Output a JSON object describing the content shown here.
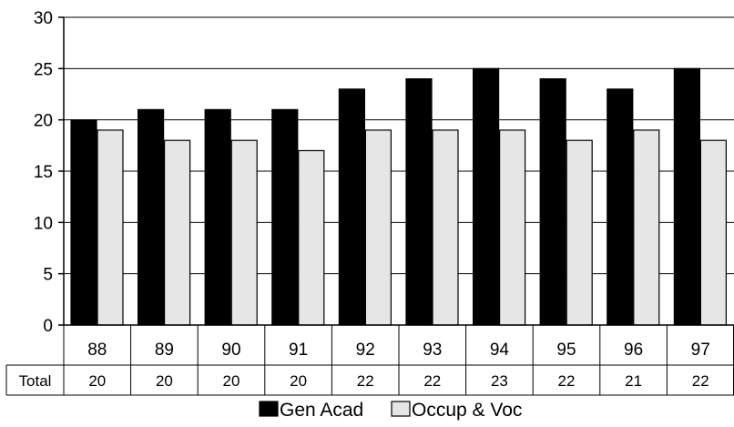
{
  "chart_data": {
    "type": "bar",
    "categories": [
      "88",
      "89",
      "90",
      "91",
      "92",
      "93",
      "94",
      "95",
      "96",
      "97"
    ],
    "series": [
      {
        "name": "Gen Acad",
        "values": [
          20,
          21,
          21,
          21,
          23,
          24,
          25,
          24,
          23,
          25
        ],
        "color": "#000000"
      },
      {
        "name": "Occup & Voc",
        "values": [
          19,
          18,
          18,
          17,
          19,
          19,
          19,
          18,
          19,
          18
        ],
        "color": "#e6e6e6"
      }
    ],
    "ylim": [
      0,
      30
    ],
    "yticks": [
      "0",
      "5",
      "10",
      "15",
      "20",
      "25",
      "30"
    ],
    "grid": true,
    "data_table": {
      "row_label": "Total",
      "values": [
        "20",
        "20",
        "20",
        "20",
        "22",
        "22",
        "23",
        "22",
        "21",
        "22"
      ]
    },
    "legend_position": "bottom",
    "title": "",
    "xlabel": "",
    "ylabel": ""
  }
}
